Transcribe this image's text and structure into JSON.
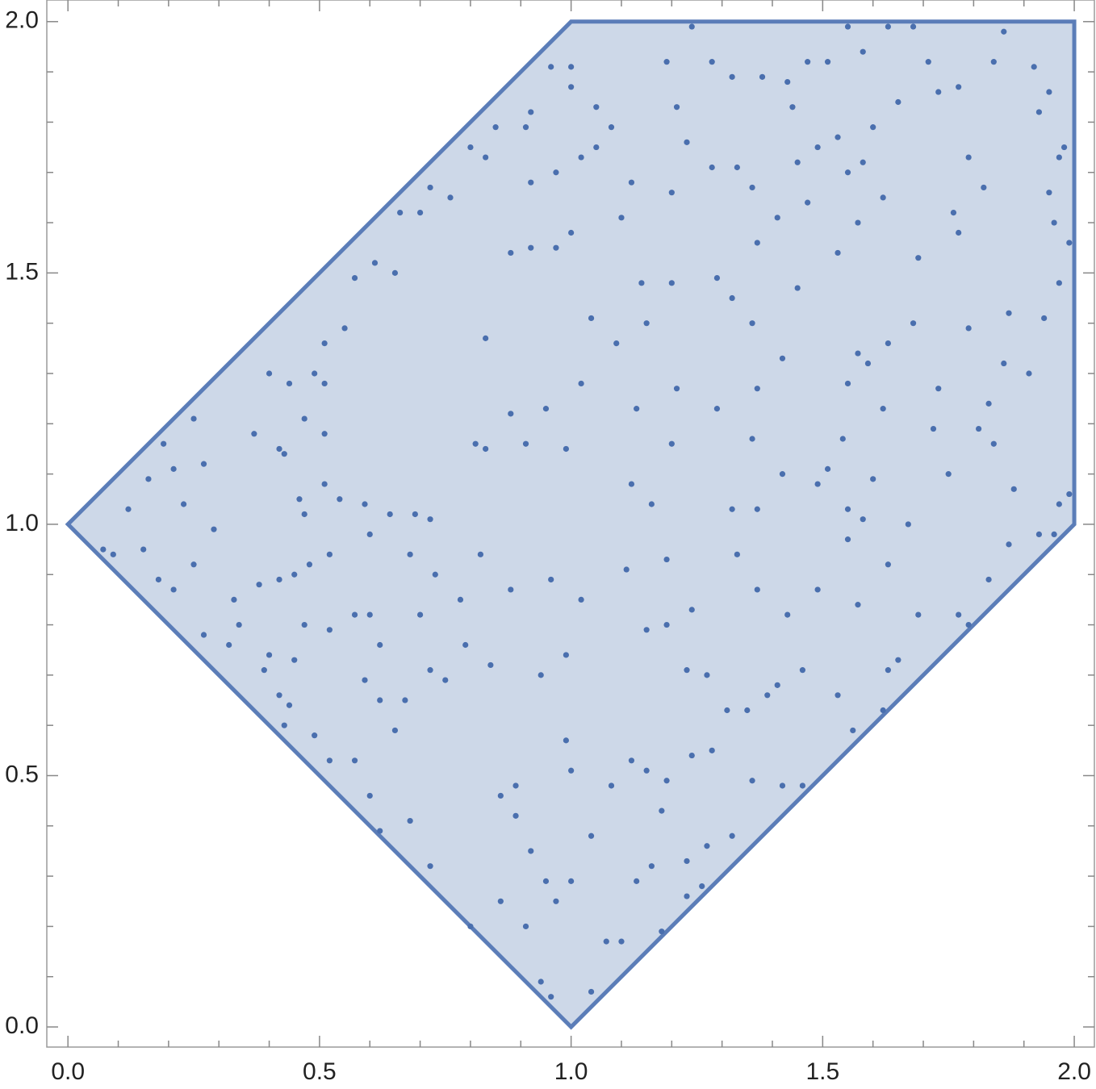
{
  "chart_data": {
    "type": "scatter",
    "xlim": [
      -0.042,
      2.04
    ],
    "ylim": [
      -0.04,
      2.043
    ],
    "xticks": [
      {
        "value": 0,
        "label": "0.0"
      },
      {
        "value": 0.5,
        "label": "0.5"
      },
      {
        "value": 1,
        "label": "1.0"
      },
      {
        "value": 1.5,
        "label": "1.5"
      },
      {
        "value": 2,
        "label": "2.0"
      }
    ],
    "yticks": [
      {
        "value": 0,
        "label": "0.0"
      },
      {
        "value": 0.5,
        "label": "0.5"
      },
      {
        "value": 1,
        "label": "1.0"
      },
      {
        "value": 1.5,
        "label": "1.5"
      },
      {
        "value": 2,
        "label": "2.0"
      }
    ],
    "xminorticks": [
      0.1,
      0.2,
      0.3,
      0.4,
      0.6,
      0.7,
      0.8,
      0.9,
      1.1,
      1.2,
      1.3,
      1.4,
      1.6,
      1.7,
      1.8,
      1.9
    ],
    "yminorticks": [
      0.1,
      0.2,
      0.3,
      0.4,
      0.6,
      0.7,
      0.8,
      0.9,
      1.1,
      1.2,
      1.3,
      1.4,
      1.6,
      1.7,
      1.8,
      1.9
    ],
    "region": {
      "x": [
        0,
        1,
        2,
        2,
        1
      ],
      "y": [
        1,
        2,
        2,
        1,
        0
      ],
      "fill": "#cdd8e8",
      "color": "#5b7db8"
    },
    "series": [
      {
        "color": "#4a6fae",
        "x": [
          0.07,
          0.09,
          0.15,
          0.12,
          0.16,
          0.19,
          0.21,
          0.25,
          0.27,
          0.23,
          0.29,
          0.25,
          0.21,
          0.18,
          0.33,
          0.34,
          0.27,
          0.32,
          0.39,
          0.42,
          0.44,
          0.43,
          0.49,
          0.52,
          0.57,
          0.6,
          0.62,
          0.68,
          0.72,
          0.8,
          0.86,
          0.94,
          0.96,
          0.91,
          1.0,
          1.04,
          1.07,
          1.1,
          1.13,
          1.18,
          1.23,
          1.26,
          1.27,
          1.32,
          1.36,
          1.42,
          1.46,
          1.56,
          1.62,
          1.63,
          1.65,
          1.69,
          1.77,
          1.79,
          1.83,
          1.87,
          1.93,
          1.96,
          1.97,
          1.99,
          1.88,
          1.84,
          1.81,
          1.75,
          1.72,
          1.73,
          1.83,
          1.91,
          1.86,
          1.79,
          1.87,
          1.94,
          1.97,
          1.99,
          1.96,
          1.95,
          1.97,
          1.98,
          1.93,
          1.95,
          1.92,
          1.86,
          1.84,
          1.77,
          1.79,
          1.82,
          1.76,
          1.77,
          1.69,
          1.68,
          1.63,
          1.59,
          1.57,
          1.62,
          1.55,
          1.54,
          1.6,
          1.49,
          1.51,
          1.55,
          1.58,
          1.67,
          1.55,
          1.63,
          1.57,
          1.49,
          1.43,
          1.41,
          1.39,
          1.46,
          1.53,
          1.35,
          1.31,
          1.27,
          1.23,
          1.19,
          1.24,
          1.33,
          1.37,
          1.32,
          1.37,
          1.42,
          1.36,
          1.29,
          1.37,
          1.42,
          1.36,
          1.32,
          1.29,
          1.37,
          1.45,
          1.53,
          1.57,
          1.47,
          1.41,
          1.36,
          1.33,
          1.28,
          1.23,
          1.21,
          1.19,
          1.24,
          1.28,
          1.32,
          1.38,
          1.43,
          1.47,
          1.51,
          1.55,
          1.58,
          1.63,
          1.68,
          1.71,
          1.73,
          1.65,
          1.6,
          1.58,
          1.55,
          1.62,
          1.53,
          1.49,
          1.44,
          1.45,
          1.08,
          1.05,
          1.0,
          0.96,
          1.0,
          0.97,
          1.02,
          1.05,
          1.0,
          0.97,
          0.92,
          0.92,
          0.91,
          0.92,
          0.85,
          0.83,
          0.8,
          0.76,
          0.72,
          0.7,
          0.66,
          0.65,
          0.61,
          0.57,
          0.55,
          0.51,
          0.49,
          0.51,
          0.44,
          0.4,
          0.37,
          0.42,
          0.43,
          0.47,
          0.51,
          0.51,
          0.46,
          0.47,
          0.52,
          0.48,
          0.45,
          0.42,
          0.38,
          0.4,
          0.45,
          0.47,
          0.52,
          0.57,
          0.6,
          0.62,
          0.59,
          0.62,
          0.65,
          0.67,
          0.72,
          0.75,
          0.79,
          0.78,
          0.73,
          0.7,
          0.68,
          0.69,
          0.72,
          0.64,
          0.59,
          0.6,
          0.54,
          0.86,
          0.89,
          0.92,
          0.95,
          0.97,
          1.12,
          1.15,
          1.19,
          1.24,
          1.28,
          1.15,
          1.11,
          1.19,
          1.16,
          1.12,
          1.2,
          1.13,
          1.21,
          0.91,
          0.88,
          0.95,
          0.99,
          0.83,
          0.82,
          0.88,
          0.96,
          1.02,
          0.99,
          0.84,
          0.94,
          0.99,
          1.0,
          0.89,
          1.08,
          1.04,
          1.16,
          1.23,
          1.18,
          1.02,
          1.04,
          1.15,
          1.09,
          1.14,
          1.2,
          1.1,
          1.12,
          1.2,
          0.88,
          0.83,
          0.81
        ],
        "values": [
          0.95,
          0.94,
          0.95,
          1.03,
          1.09,
          1.16,
          1.11,
          1.21,
          1.12,
          1.04,
          0.99,
          0.92,
          0.87,
          0.89,
          0.85,
          0.8,
          0.78,
          0.76,
          0.71,
          0.66,
          0.64,
          0.6,
          0.58,
          0.53,
          0.53,
          0.46,
          0.39,
          0.41,
          0.32,
          0.2,
          0.25,
          0.09,
          0.06,
          0.2,
          0.29,
          0.07,
          0.17,
          0.17,
          0.29,
          0.19,
          0.26,
          0.28,
          0.36,
          0.38,
          0.49,
          0.48,
          0.48,
          0.59,
          0.63,
          0.71,
          0.73,
          0.82,
          0.82,
          0.8,
          0.89,
          0.96,
          0.98,
          0.98,
          1.04,
          1.06,
          1.07,
          1.16,
          1.19,
          1.1,
          1.19,
          1.27,
          1.24,
          1.3,
          1.32,
          1.39,
          1.42,
          1.41,
          1.48,
          1.56,
          1.6,
          1.66,
          1.73,
          1.75,
          1.82,
          1.86,
          1.91,
          1.98,
          1.92,
          1.87,
          1.73,
          1.67,
          1.62,
          1.58,
          1.53,
          1.4,
          1.36,
          1.32,
          1.34,
          1.23,
          1.28,
          1.17,
          1.09,
          1.08,
          1.11,
          1.03,
          1.01,
          1.0,
          0.97,
          0.92,
          0.84,
          0.87,
          0.82,
          0.68,
          0.66,
          0.71,
          0.66,
          0.63,
          0.63,
          0.7,
          0.71,
          0.8,
          0.83,
          0.94,
          0.87,
          1.03,
          1.03,
          1.1,
          1.17,
          1.23,
          1.27,
          1.33,
          1.4,
          1.45,
          1.49,
          1.56,
          1.47,
          1.54,
          1.6,
          1.64,
          1.61,
          1.67,
          1.71,
          1.71,
          1.76,
          1.83,
          1.92,
          1.99,
          1.92,
          1.89,
          1.89,
          1.88,
          1.92,
          1.92,
          1.99,
          1.94,
          1.99,
          1.99,
          1.92,
          1.86,
          1.84,
          1.79,
          1.72,
          1.7,
          1.65,
          1.77,
          1.75,
          1.83,
          1.72,
          1.79,
          1.83,
          1.91,
          1.91,
          1.87,
          1.7,
          1.73,
          1.75,
          1.58,
          1.55,
          1.55,
          1.68,
          1.79,
          1.82,
          1.79,
          1.73,
          1.75,
          1.65,
          1.67,
          1.62,
          1.62,
          1.5,
          1.52,
          1.49,
          1.39,
          1.36,
          1.3,
          1.28,
          1.28,
          1.3,
          1.18,
          1.15,
          1.14,
          1.21,
          1.18,
          1.08,
          1.05,
          1.02,
          0.94,
          0.92,
          0.9,
          0.89,
          0.88,
          0.74,
          0.73,
          0.8,
          0.79,
          0.82,
          0.82,
          0.76,
          0.69,
          0.65,
          0.59,
          0.65,
          0.71,
          0.69,
          0.76,
          0.85,
          0.9,
          0.82,
          0.94,
          1.02,
          1.01,
          1.02,
          1.04,
          0.98,
          1.05,
          0.46,
          0.42,
          0.35,
          0.29,
          0.25,
          0.53,
          0.51,
          0.49,
          0.54,
          0.55,
          0.79,
          0.91,
          0.93,
          1.04,
          1.08,
          1.16,
          1.23,
          1.27,
          1.16,
          1.22,
          1.23,
          1.15,
          1.15,
          0.94,
          0.87,
          0.89,
          0.85,
          0.74,
          0.72,
          0.7,
          0.57,
          0.51,
          0.48,
          0.48,
          0.38,
          0.32,
          0.33,
          0.43,
          1.28,
          1.41,
          1.4,
          1.36,
          1.48,
          1.48,
          1.61,
          1.68,
          1.66,
          1.54,
          1.37,
          1.16
        ]
      }
    ]
  }
}
